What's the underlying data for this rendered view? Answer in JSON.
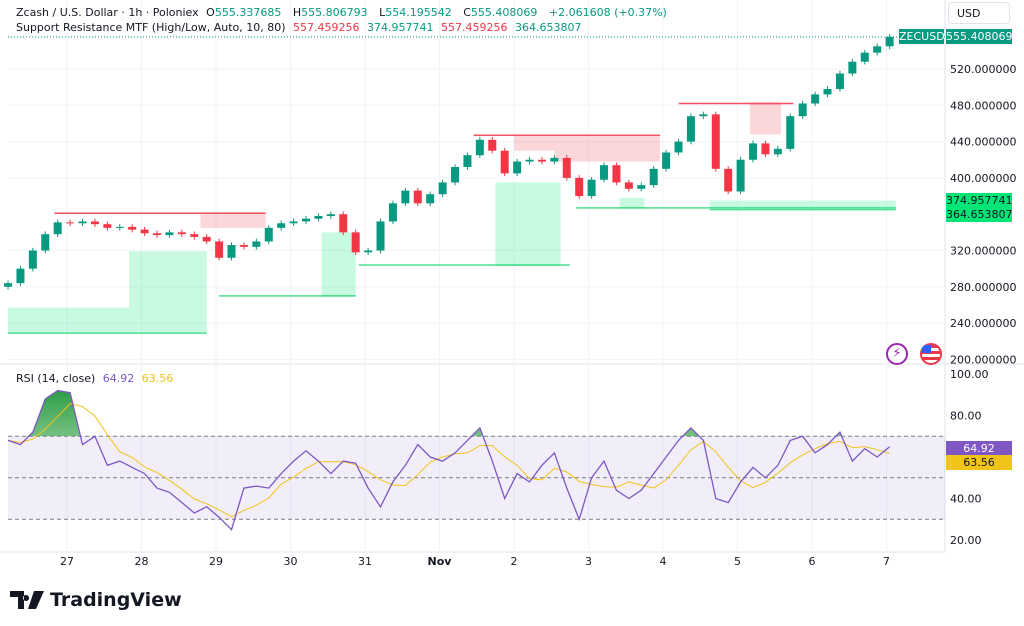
{
  "header": {
    "symbol_line": "Zcash / U.S. Dollar · 1h · Poloniex",
    "open_label": "O",
    "open": "555.337685",
    "high_label": "H",
    "high": "555.806793",
    "low_label": "L",
    "low": "554.195542",
    "close_label": "C",
    "close": "555.408069",
    "change": "+2.061608 (+0.37%)",
    "indicator": "Support Resistance MTF (High/Low, Auto, 10, 80)",
    "ind_values": [
      "557.459256",
      "374.957741",
      "557.459256",
      "364.653807"
    ]
  },
  "currency_button": "USD",
  "price_badge": {
    "ticker": "ZECUSD",
    "value": "555.408069"
  },
  "support_badges": [
    "374.957741",
    "364.653807"
  ],
  "rsi": {
    "label": "RSI (14, close)",
    "value": "64.92",
    "ma_value": "63.56"
  },
  "logo": {
    "text": "TradingView"
  },
  "colors": {
    "up": "#089981",
    "down": "#f23645",
    "resistance": "#f7525f",
    "support": "#4be08f",
    "rsi": "#7e57c2",
    "rsi_ma": "#f0c419"
  },
  "icons": [
    "lightning-icon",
    "us-flag-icon"
  ],
  "chart_data": [
    {
      "type": "candlestick",
      "start": "10-26 05:00",
      "step_hours": 4,
      "close": [
        284,
        300,
        320,
        338,
        351,
        350,
        352,
        349,
        345,
        346,
        343,
        339,
        337,
        340,
        338,
        335,
        330,
        312,
        326,
        324,
        330,
        345,
        350,
        352,
        355,
        358,
        360,
        340,
        318,
        320,
        352,
        372,
        386,
        372,
        382,
        395,
        412,
        425,
        442,
        430,
        405,
        418,
        420,
        418,
        422,
        400,
        380,
        398,
        414,
        395,
        388,
        392,
        410,
        428,
        440,
        468,
        470,
        410,
        385,
        420,
        438,
        426,
        432,
        468,
        482,
        492,
        498,
        515,
        528,
        538,
        545,
        555.41
      ],
      "y_ticks": [
        "520.000000",
        "480.000000",
        "440.000000",
        "400.000000",
        "320.000000",
        "280.000000",
        "240.000000",
        "200.000000"
      ],
      "y_tick_values": [
        520,
        480,
        440,
        400,
        320,
        280,
        240,
        200
      ],
      "x_ticks": [
        {
          "t": "10-27 00:00",
          "label": "27"
        },
        {
          "t": "10-28 00:00",
          "label": "28"
        },
        {
          "t": "10-29 00:00",
          "label": "29"
        },
        {
          "t": "10-30 00:00",
          "label": "30"
        },
        {
          "t": "10-31 00:00",
          "label": "31"
        },
        {
          "t": "11-01 00:00",
          "label": "Nov"
        },
        {
          "t": "11-02 00:00",
          "label": "2"
        },
        {
          "t": "11-03 00:00",
          "label": "3"
        },
        {
          "t": "11-04 00:00",
          "label": "4"
        },
        {
          "t": "11-05 00:00",
          "label": "5"
        },
        {
          "t": "11-06 00:00",
          "label": "6"
        },
        {
          "t": "11-07 00:00",
          "label": "7"
        }
      ],
      "last_price": 555.41,
      "resistance_zones": [
        {
          "from": "10-26 20:00",
          "to": "10-29 16:00",
          "top": 361,
          "bottom": 361
        },
        {
          "from": "10-28 19:00",
          "to": "10-29 16:00",
          "top": 361,
          "bottom": 345
        },
        {
          "from": "11-01 11:00",
          "to": "11-03 23:00",
          "top": 447,
          "bottom": 447
        },
        {
          "from": "11-02 00:00",
          "to": "11-02 13:00",
          "top": 447,
          "bottom": 430
        },
        {
          "from": "11-02 13:00",
          "to": "11-03 23:00",
          "top": 447,
          "bottom": 418
        },
        {
          "from": "11-04 05:00",
          "to": "11-05 18:00",
          "top": 482,
          "bottom": 482
        },
        {
          "from": "11-05 04:00",
          "to": "11-05 14:00",
          "top": 482,
          "bottom": 448
        }
      ],
      "support_zones": [
        {
          "from": "10-26 05:00",
          "to": "10-27 20:00",
          "top": 257,
          "bottom": 229
        },
        {
          "from": "10-27 20:00",
          "to": "10-28 21:00",
          "top": 319,
          "bottom": 229
        },
        {
          "from": "10-29 01:00",
          "to": "10-30 21:00",
          "top": 270,
          "bottom": 270
        },
        {
          "from": "10-30 10:00",
          "to": "10-30 21:00",
          "top": 340,
          "bottom": 270
        },
        {
          "from": "10-30 22:00",
          "to": "11-02 18:00",
          "top": 304,
          "bottom": 304
        },
        {
          "from": "11-01 18:00",
          "to": "11-02 15:00",
          "top": 395,
          "bottom": 304
        },
        {
          "from": "11-02 20:00",
          "to": "11-07 03:00",
          "top": 367,
          "bottom": 367
        },
        {
          "from": "11-03 10:00",
          "to": "11-03 18:00",
          "top": 378,
          "bottom": 367
        },
        {
          "from": "11-04 15:00",
          "to": "11-07 03:00",
          "top": 375,
          "bottom": 365
        }
      ]
    },
    {
      "type": "line",
      "name": "RSI (14, close)",
      "start": "10-26 05:00",
      "step_hours": 4,
      "values": [
        68,
        66,
        72,
        88,
        92,
        91,
        66,
        70,
        56,
        58,
        55,
        52,
        45,
        43,
        38,
        33,
        36,
        31,
        25,
        45,
        46,
        45,
        52,
        58,
        63,
        58,
        52,
        58,
        57,
        45,
        36,
        48,
        56,
        66,
        60,
        58,
        62,
        68,
        74,
        58,
        40,
        52,
        48,
        56,
        62,
        45,
        30,
        50,
        58,
        44,
        40,
        44,
        52,
        60,
        68,
        74,
        68,
        40,
        38,
        48,
        55,
        50,
        56,
        68,
        70,
        62,
        66,
        72,
        58,
        64,
        60,
        64.92
      ],
      "y_ticks": [
        "100.00",
        "80.00",
        "40.00",
        "20.00"
      ],
      "y_tick_values": [
        100,
        80,
        40,
        20
      ],
      "bands": [
        70,
        50,
        30
      ],
      "ylim": [
        0,
        100
      ]
    }
  ]
}
